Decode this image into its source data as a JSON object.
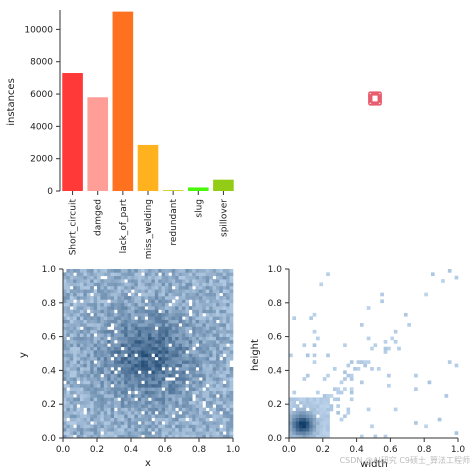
{
  "chart_data": [
    {
      "type": "bar",
      "categories": [
        "Short_circuit",
        "damged",
        "lack_of_part",
        "miss_welding",
        "redundant",
        "slug",
        "spillover"
      ],
      "values": [
        7300,
        5800,
        11100,
        2850,
        60,
        220,
        700
      ],
      "colors": [
        "#ff3838",
        "#ff9d97",
        "#ff701f",
        "#ffb21d",
        "#cfd231",
        "#48f90a",
        "#92cc17"
      ],
      "xlabel": "",
      "ylabel": "instances",
      "ylim": [
        0,
        11200
      ],
      "yticks": [
        0,
        2000,
        4000,
        6000,
        8000,
        10000
      ],
      "ytick_labels": [
        "0",
        "2000",
        "4000",
        "6000",
        "8000",
        "10000"
      ],
      "grid": false
    },
    {
      "type": "scatter",
      "description_value": "label box outlines overlay",
      "xlim": [
        0,
        1
      ],
      "ylim": [
        0,
        1
      ],
      "box_color": "#e85d6e",
      "boxes": [
        {
          "cx": 0.5,
          "cy": 0.5,
          "w": 0.055,
          "h": 0.07
        },
        {
          "cx": 0.5,
          "cy": 0.5,
          "w": 0.04,
          "h": 0.05
        },
        {
          "cx": 0.5,
          "cy": 0.5,
          "w": 0.03,
          "h": 0.06
        },
        {
          "cx": 0.5,
          "cy": 0.5,
          "w": 0.05,
          "h": 0.04
        }
      ]
    },
    {
      "type": "heatmap",
      "xlabel": "x",
      "ylabel": "y",
      "xlim": [
        0,
        1
      ],
      "ylim": [
        0,
        1
      ],
      "xticks": [
        "0.0",
        "0.2",
        "0.4",
        "0.6",
        "0.8",
        "1.0"
      ],
      "yticks": [
        "0.0",
        "0.2",
        "0.4",
        "0.6",
        "0.8",
        "1.0"
      ],
      "bins": 50,
      "peak": [
        0.5,
        0.48
      ],
      "color_low": "#c6dcf3",
      "color_high": "#0e3a66"
    },
    {
      "type": "heatmap",
      "xlabel": "width",
      "ylabel": "height",
      "xlim": [
        0,
        1
      ],
      "ylim": [
        0,
        1
      ],
      "xticks": [
        "0.0",
        "0.2",
        "0.4",
        "0.6",
        "0.8",
        "1.0"
      ],
      "yticks": [
        "0.0",
        "0.2",
        "0.4",
        "0.6",
        "0.8",
        "1.0"
      ],
      "bins": 50,
      "peak": [
        0.08,
        0.08
      ],
      "color_low": "#c6dcf3",
      "color_high": "#0e3a66"
    }
  ],
  "watermark": "CSDN @AI研究 C9硕士_算法工程师"
}
